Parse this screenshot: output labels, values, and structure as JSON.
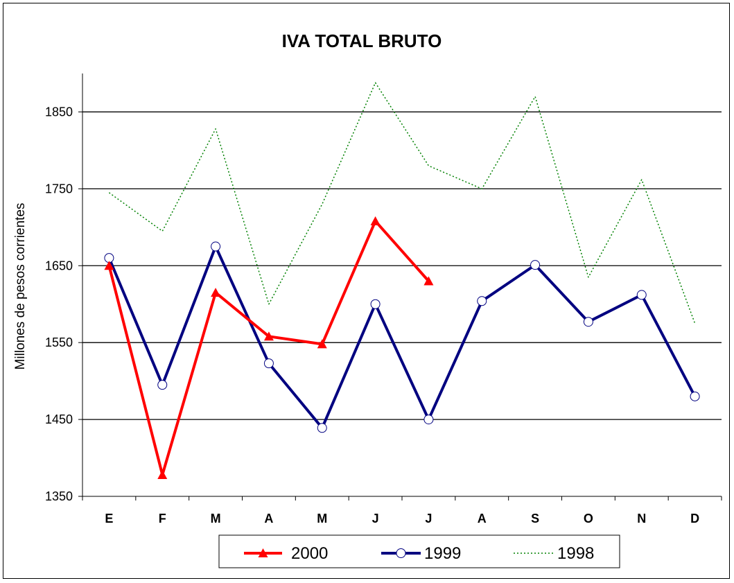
{
  "chart_data": {
    "type": "line",
    "title": "IVA TOTAL BRUTO",
    "xlabel": "",
    "ylabel": "Millones de pesos corrientes",
    "categories": [
      "E",
      "F",
      "M",
      "A",
      "M",
      "J",
      "J",
      "A",
      "S",
      "O",
      "N",
      "D"
    ],
    "ylim": [
      1350,
      1900
    ],
    "yticks": [
      1350,
      1450,
      1550,
      1650,
      1750,
      1850
    ],
    "grid": true,
    "legend_position": "bottom",
    "series": [
      {
        "name": "2000",
        "color": "#ff0000",
        "marker": "triangle",
        "style": "solid",
        "values": [
          1650,
          1378,
          1615,
          1558,
          1548,
          1708,
          1630,
          null,
          null,
          null,
          null,
          null
        ]
      },
      {
        "name": "1999",
        "color": "#000080",
        "marker": "circle",
        "style": "solid",
        "values": [
          1660,
          1495,
          1675,
          1523,
          1439,
          1600,
          1450,
          1604,
          1651,
          1577,
          1612,
          1480
        ]
      },
      {
        "name": "1998",
        "color": "#008000",
        "marker": "none",
        "style": "dotted",
        "values": [
          1745,
          1695,
          1828,
          1600,
          1730,
          1888,
          1780,
          1750,
          1870,
          1635,
          1762,
          1575
        ]
      }
    ]
  }
}
